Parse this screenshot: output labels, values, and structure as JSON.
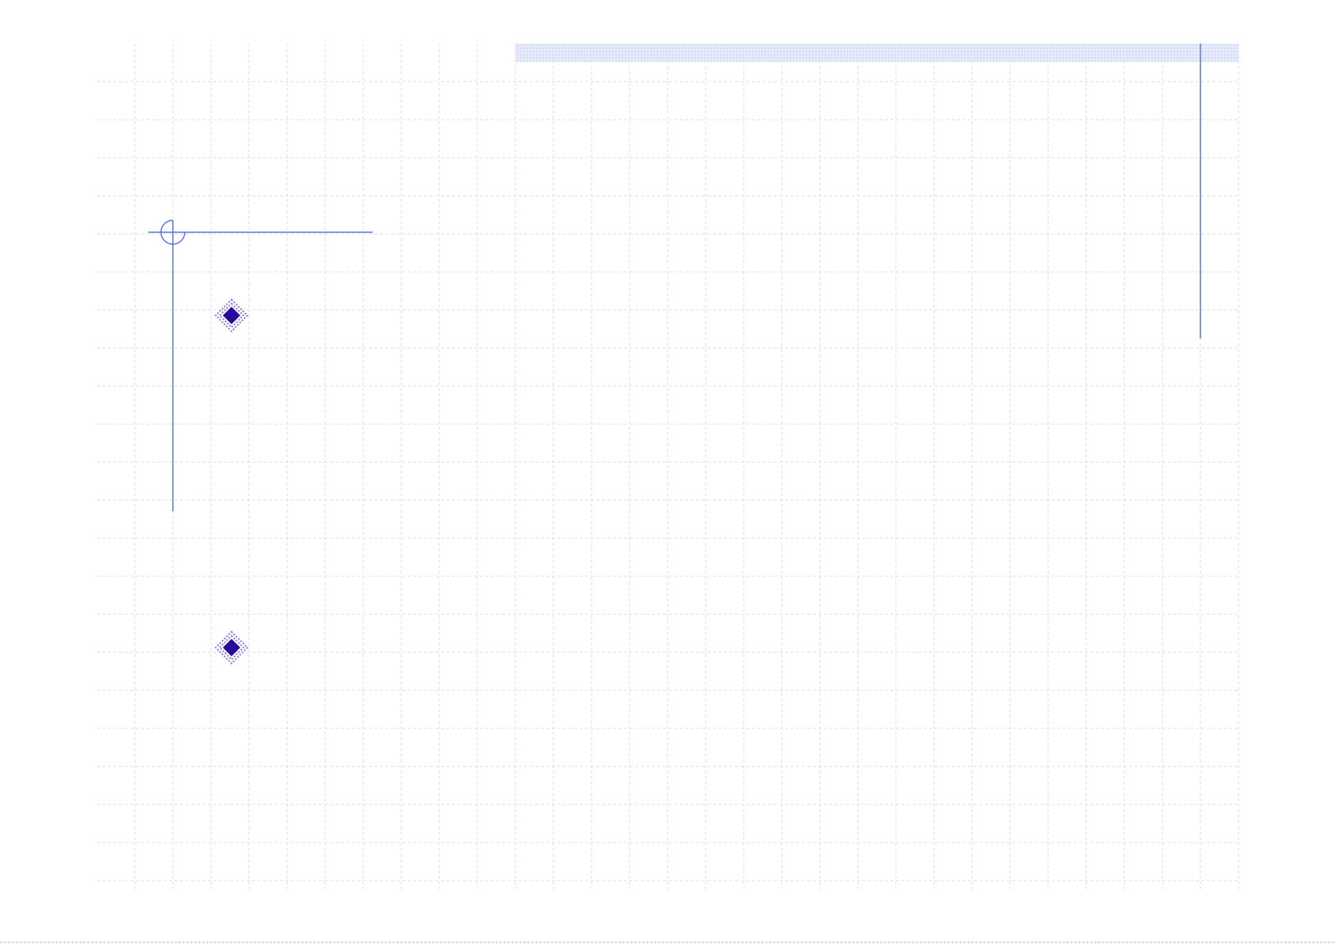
{
  "slide": {
    "background": "#ffffff",
    "grid_color": "#d8dcf4",
    "accent_line_color": "#5a73e6",
    "bullet_color": "#2a0a9a",
    "bullet_outline_color": "#8a78d8",
    "header_band_color": "#dfe5fb",
    "bullets": [
      {
        "icon": "diamond-bullet-icon",
        "text": ""
      },
      {
        "icon": "diamond-bullet-icon",
        "text": ""
      }
    ]
  }
}
